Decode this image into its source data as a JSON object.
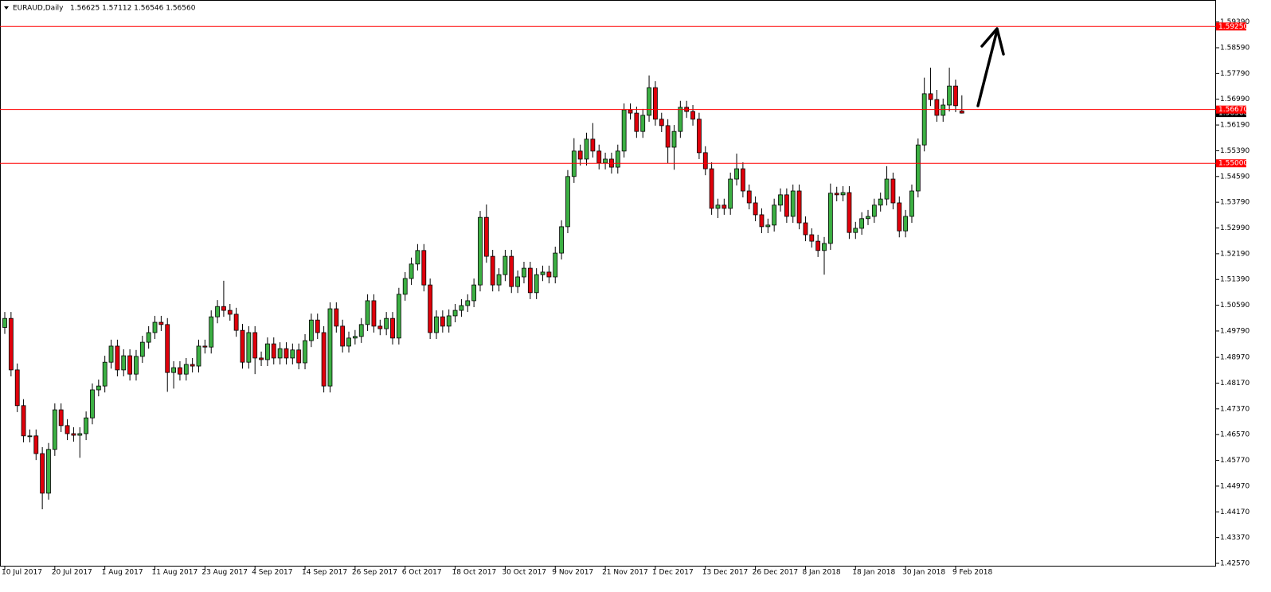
{
  "chart_data": {
    "type": "candlestick",
    "title": "EURAUD,Daily",
    "subtitle": "1.56625 1.57112 1.56546 1.56560",
    "up_color": "#3cb043",
    "down_color": "#e0000b",
    "level_color": "#ff0000",
    "ylim": [
      1.42471,
      1.60024
    ],
    "yticks": [
      {
        "value": 1.5939,
        "label": "1.59390"
      },
      {
        "value": 1.5859,
        "label": "1.58590"
      },
      {
        "value": 1.5779,
        "label": "1.57790"
      },
      {
        "value": 1.5699,
        "label": "1.56990"
      },
      {
        "value": 1.5619,
        "label": "1.56190"
      },
      {
        "value": 1.5539,
        "label": "1.55390"
      },
      {
        "value": 1.5459,
        "label": "1.54590"
      },
      {
        "value": 1.5379,
        "label": "1.53790"
      },
      {
        "value": 1.5299,
        "label": "1.52990"
      },
      {
        "value": 1.5219,
        "label": "1.52190"
      },
      {
        "value": 1.5139,
        "label": "1.51390"
      },
      {
        "value": 1.5059,
        "label": "1.50590"
      },
      {
        "value": 1.4979,
        "label": "1.49790"
      },
      {
        "value": 1.4897,
        "label": "1.48970"
      },
      {
        "value": 1.4817,
        "label": "1.48170"
      },
      {
        "value": 1.4737,
        "label": "1.47370"
      },
      {
        "value": 1.4657,
        "label": "1.46570"
      },
      {
        "value": 1.4577,
        "label": "1.45770"
      },
      {
        "value": 1.4497,
        "label": "1.44970"
      },
      {
        "value": 1.4417,
        "label": "1.44170"
      },
      {
        "value": 1.4337,
        "label": "1.43370"
      },
      {
        "value": 1.4257,
        "label": "1.42570"
      }
    ],
    "xticks": [
      {
        "value": 0,
        "label": "10 Jul 2017"
      },
      {
        "value": 8,
        "label": "20 Jul 2017"
      },
      {
        "value": 16,
        "label": "1 Aug 2017"
      },
      {
        "value": 24,
        "label": "11 Aug 2017"
      },
      {
        "value": 32,
        "label": "23 Aug 2017"
      },
      {
        "value": 40,
        "label": "4 Sep 2017"
      },
      {
        "value": 48,
        "label": "14 Sep 2017"
      },
      {
        "value": 56,
        "label": "26 Sep 2017"
      },
      {
        "value": 64,
        "label": "6 Oct 2017"
      },
      {
        "value": 72,
        "label": "18 Oct 2017"
      },
      {
        "value": 80,
        "label": "30 Oct 2017"
      },
      {
        "value": 88,
        "label": "9 Nov 2017"
      },
      {
        "value": 96,
        "label": "21 Nov 2017"
      },
      {
        "value": 104,
        "label": "1 Dec 2017"
      },
      {
        "value": 112,
        "label": "13 Dec 2017"
      },
      {
        "value": 120,
        "label": "26 Dec 2017"
      },
      {
        "value": 128,
        "label": "8 Jan 2018"
      },
      {
        "value": 136,
        "label": "18 Jan 2018"
      },
      {
        "value": 144,
        "label": "30 Jan 2018"
      },
      {
        "value": 152,
        "label": "9 Feb 2018"
      }
    ],
    "levels": [
      {
        "value": 1.5925,
        "label": "1.59250"
      },
      {
        "value": 1.5667,
        "label": "1.56670"
      },
      {
        "value": 1.55,
        "label": "1.55000"
      }
    ],
    "last_price": {
      "value": 1.5656,
      "label": "1.56560"
    },
    "open": [
      1.499,
      1.5018,
      1.4858,
      1.4747,
      1.4653,
      1.4653,
      1.4598,
      1.4475,
      1.4611,
      1.4734,
      1.4685,
      1.466,
      1.4655,
      1.466,
      1.4709,
      1.4796,
      1.4808,
      1.4882,
      1.4932,
      1.4858,
      1.4902,
      1.4845,
      1.49,
      1.4944,
      1.4974,
      1.5006,
      1.4999,
      1.485,
      1.4865,
      1.4845,
      1.4875,
      1.487,
      1.4932,
      1.4929,
      1.5023,
      1.5055,
      1.5043,
      1.5031,
      1.4981,
      1.4882,
      1.4974,
      1.4895,
      1.489,
      1.4939,
      1.4895,
      1.4924,
      1.4895,
      1.492,
      1.488,
      1.4949,
      1.5013,
      1.4974,
      1.4808,
      1.5048,
      1.4994,
      1.4932,
      1.4957,
      1.4962,
      1.4999,
      1.5073,
      1.4994,
      1.4986,
      1.5018,
      1.4957,
      1.5093,
      1.5142,
      1.5187,
      1.5229,
      1.5122,
      1.4974,
      1.5023,
      1.4994,
      1.5026,
      1.5043,
      1.5058,
      1.5073,
      1.5122,
      1.5332,
      1.5211,
      1.5122,
      1.5154,
      1.5211,
      1.5117,
      1.5147,
      1.5174,
      1.5098,
      1.5154,
      1.5162,
      1.5147,
      1.5221,
      1.5303,
      1.5459,
      1.5538,
      1.5513,
      1.5575,
      1.5538,
      1.5501,
      1.5513,
      1.5488,
      1.5538,
      1.5666,
      1.5656,
      1.5599,
      1.5649,
      1.5735,
      1.5637,
      1.5617,
      1.555,
      1.5599,
      1.5674,
      1.5661,
      1.5637,
      1.5533,
      1.5483,
      1.536,
      1.537,
      1.536,
      1.5451,
      1.5483,
      1.5414,
      1.5377,
      1.534,
      1.5303,
      1.5308,
      1.537,
      1.5402,
      1.5335,
      1.5414,
      1.5315,
      1.5278,
      1.5258,
      1.5229,
      1.5251,
      1.5407,
      1.5402,
      1.5409,
      1.5285,
      1.5298,
      1.5328,
      1.5335,
      1.537,
      1.5389,
      1.5451,
      1.5377,
      1.529,
      1.5335,
      1.5414,
      1.5557,
      1.5716,
      1.5698,
      1.5649,
      1.5681,
      1.574,
      1.56625
    ],
    "high": [
      1.5038,
      1.5038,
      1.4878,
      1.4767,
      1.4673,
      1.4673,
      1.4618,
      1.4631,
      1.4754,
      1.4754,
      1.4705,
      1.468,
      1.468,
      1.4729,
      1.4816,
      1.4828,
      1.4902,
      1.4952,
      1.4952,
      1.4922,
      1.4922,
      1.492,
      1.4964,
      1.4994,
      1.5026,
      1.5026,
      1.5019,
      1.4885,
      1.4885,
      1.4895,
      1.4895,
      1.4952,
      1.4952,
      1.5043,
      1.5075,
      1.5135,
      1.5063,
      1.5051,
      1.5001,
      1.4994,
      1.4994,
      1.4915,
      1.4959,
      1.4959,
      1.4944,
      1.4944,
      1.494,
      1.494,
      1.4969,
      1.5033,
      1.5033,
      1.4994,
      1.5068,
      1.5068,
      1.5014,
      1.4977,
      1.4982,
      1.5019,
      1.5093,
      1.5093,
      1.5014,
      1.5038,
      1.5038,
      1.5113,
      1.5162,
      1.5207,
      1.5249,
      1.5249,
      1.5142,
      1.5043,
      1.5043,
      1.5046,
      1.5063,
      1.5078,
      1.5093,
      1.5142,
      1.5352,
      1.5372,
      1.5231,
      1.5174,
      1.5231,
      1.5231,
      1.5167,
      1.5194,
      1.5194,
      1.5174,
      1.5182,
      1.5182,
      1.5241,
      1.5323,
      1.5479,
      1.5578,
      1.5558,
      1.5595,
      1.5625,
      1.5558,
      1.5533,
      1.5533,
      1.5558,
      1.5686,
      1.5686,
      1.5676,
      1.5669,
      1.5773,
      1.5755,
      1.5657,
      1.5637,
      1.5619,
      1.5694,
      1.5694,
      1.5681,
      1.5657,
      1.5553,
      1.5503,
      1.539,
      1.539,
      1.5471,
      1.553,
      1.5503,
      1.5434,
      1.5397,
      1.536,
      1.5328,
      1.539,
      1.5422,
      1.5422,
      1.5434,
      1.5434,
      1.5335,
      1.5298,
      1.5278,
      1.5271,
      1.5437,
      1.5427,
      1.5429,
      1.5429,
      1.5318,
      1.5348,
      1.5355,
      1.539,
      1.5409,
      1.5491,
      1.5471,
      1.5397,
      1.5355,
      1.5434,
      1.5577,
      1.5766,
      1.5797,
      1.5728,
      1.5701,
      1.5797,
      1.576,
      1.57112
    ],
    "low": [
      1.497,
      1.4838,
      1.4727,
      1.4633,
      1.4633,
      1.4578,
      1.4425,
      1.4455,
      1.4591,
      1.4665,
      1.464,
      1.4635,
      1.4585,
      1.464,
      1.4689,
      1.4776,
      1.4788,
      1.4862,
      1.4838,
      1.4838,
      1.4825,
      1.4825,
      1.488,
      1.4924,
      1.4954,
      1.4979,
      1.479,
      1.48,
      1.4825,
      1.4825,
      1.485,
      1.485,
      1.4909,
      1.4909,
      1.5003,
      1.5023,
      1.5011,
      1.4961,
      1.4862,
      1.4862,
      1.4845,
      1.487,
      1.487,
      1.4875,
      1.4875,
      1.4875,
      1.4875,
      1.486,
      1.486,
      1.4929,
      1.4954,
      1.4788,
      1.4788,
      1.4974,
      1.4912,
      1.4912,
      1.4937,
      1.4942,
      1.4979,
      1.4974,
      1.4966,
      1.4966,
      1.4937,
      1.4937,
      1.5073,
      1.5122,
      1.5167,
      1.5102,
      1.4954,
      1.4954,
      1.4974,
      1.4974,
      1.5006,
      1.5023,
      1.5038,
      1.5053,
      1.5102,
      1.5191,
      1.5102,
      1.5102,
      1.5134,
      1.5097,
      1.5097,
      1.5127,
      1.5078,
      1.5078,
      1.5134,
      1.5127,
      1.5127,
      1.5201,
      1.5283,
      1.5439,
      1.5493,
      1.5493,
      1.5518,
      1.5481,
      1.5481,
      1.5468,
      1.5468,
      1.5518,
      1.5636,
      1.5579,
      1.5579,
      1.5629,
      1.5617,
      1.5597,
      1.55,
      1.548,
      1.5579,
      1.5641,
      1.5617,
      1.5513,
      1.5463,
      1.534,
      1.533,
      1.534,
      1.534,
      1.5431,
      1.5394,
      1.5357,
      1.532,
      1.5283,
      1.5283,
      1.5288,
      1.535,
      1.5315,
      1.5315,
      1.5295,
      1.5258,
      1.5238,
      1.5209,
      1.5154,
      1.5231,
      1.5382,
      1.5382,
      1.5265,
      1.5265,
      1.5278,
      1.5308,
      1.5315,
      1.535,
      1.5369,
      1.5357,
      1.527,
      1.527,
      1.5315,
      1.5394,
      1.5537,
      1.5678,
      1.5629,
      1.5629,
      1.5661,
      1.5659,
      1.56546
    ],
    "close": [
      1.5018,
      1.4858,
      1.4747,
      1.4653,
      1.4653,
      1.4598,
      1.4475,
      1.4611,
      1.4734,
      1.4685,
      1.466,
      1.4655,
      1.466,
      1.4709,
      1.4796,
      1.4808,
      1.4882,
      1.4932,
      1.4858,
      1.4902,
      1.4845,
      1.49,
      1.4944,
      1.4974,
      1.5006,
      1.4999,
      1.485,
      1.4865,
      1.4845,
      1.4875,
      1.487,
      1.4932,
      1.4929,
      1.5023,
      1.5055,
      1.5043,
      1.5031,
      1.4981,
      1.4882,
      1.4974,
      1.4895,
      1.489,
      1.4939,
      1.4895,
      1.4924,
      1.4895,
      1.492,
      1.488,
      1.4949,
      1.5013,
      1.4974,
      1.4808,
      1.5048,
      1.4994,
      1.4932,
      1.4957,
      1.4962,
      1.4999,
      1.5073,
      1.4994,
      1.4986,
      1.5018,
      1.4957,
      1.5093,
      1.5142,
      1.5187,
      1.5229,
      1.5122,
      1.4974,
      1.5023,
      1.4994,
      1.5026,
      1.5043,
      1.5058,
      1.5073,
      1.5122,
      1.5332,
      1.5211,
      1.5122,
      1.5154,
      1.5211,
      1.5117,
      1.5147,
      1.5174,
      1.5098,
      1.5154,
      1.5162,
      1.5147,
      1.5221,
      1.5303,
      1.5459,
      1.5538,
      1.5513,
      1.5575,
      1.5538,
      1.5501,
      1.5513,
      1.5488,
      1.5538,
      1.5666,
      1.5656,
      1.5599,
      1.5649,
      1.5735,
      1.5637,
      1.5617,
      1.555,
      1.5599,
      1.5674,
      1.5661,
      1.5637,
      1.5533,
      1.5483,
      1.536,
      1.537,
      1.536,
      1.5451,
      1.5483,
      1.5414,
      1.5377,
      1.534,
      1.5303,
      1.5308,
      1.537,
      1.5402,
      1.5335,
      1.5414,
      1.5315,
      1.5278,
      1.5258,
      1.5229,
      1.5251,
      1.5407,
      1.5402,
      1.5409,
      1.5285,
      1.5298,
      1.5328,
      1.5335,
      1.537,
      1.5389,
      1.5451,
      1.5377,
      1.529,
      1.5335,
      1.5414,
      1.5557,
      1.5716,
      1.5698,
      1.5649,
      1.5681,
      1.574,
      1.5679,
      1.5656
    ]
  }
}
